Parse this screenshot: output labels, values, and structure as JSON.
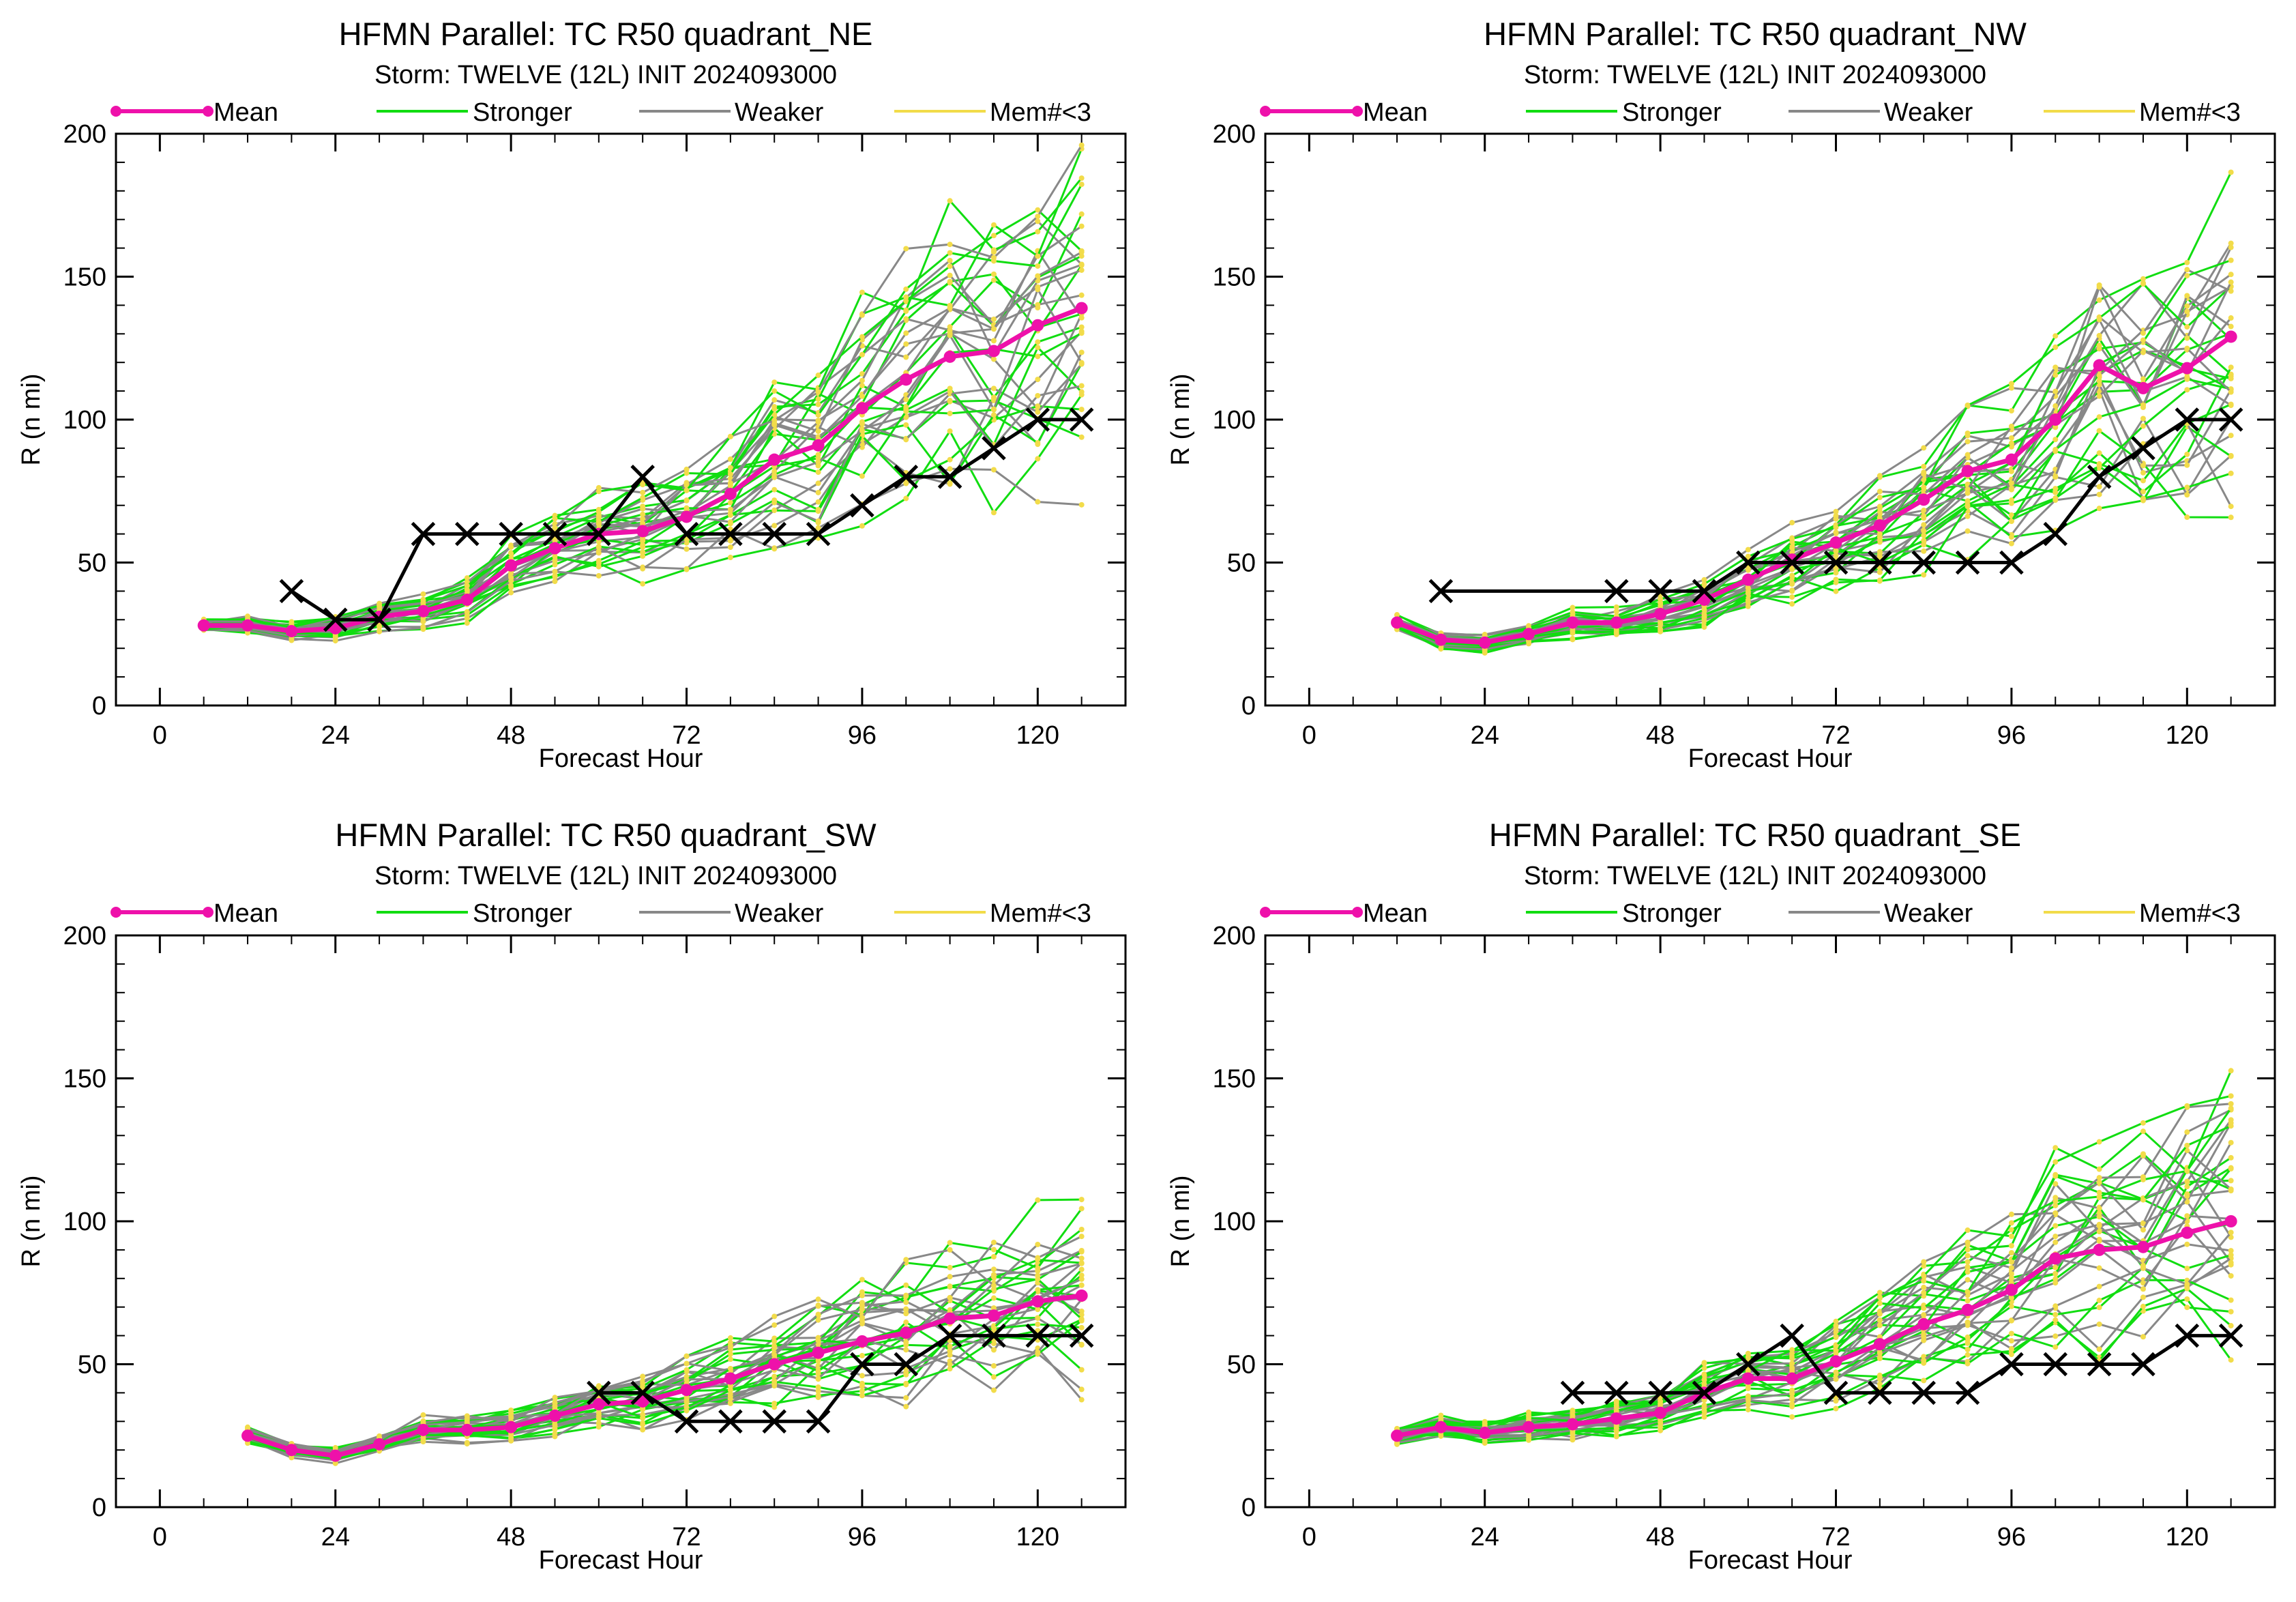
{
  "legend": {
    "mean": "Mean",
    "stronger": "Stronger",
    "weaker": "Weaker",
    "lowmem": "Mem#<3"
  },
  "colors": {
    "mean": "#ee11aa",
    "stronger": "#11dd11",
    "weaker": "#888888",
    "lowmem": "#f2dc4a",
    "best_track": "#000000"
  },
  "chart_data": [
    {
      "type": "line",
      "title": "HFMN Parallel: TC  R50 quadrant_NE",
      "subtitle": "Storm: TWELVE (12L) INIT 2024093000",
      "xlabel": "Forecast Hour",
      "ylabel": "R (n mi)",
      "xlim": [
        -6,
        132
      ],
      "ylim": [
        0,
        200
      ],
      "xticks": [
        0,
        24,
        48,
        72,
        96,
        120
      ],
      "yticks": [
        0,
        50,
        100,
        150,
        200
      ],
      "grid": false,
      "legend_position": "top",
      "series": [
        {
          "name": "Mean",
          "x": [
            6,
            12,
            18,
            24,
            30,
            36,
            42,
            48,
            54,
            60,
            66,
            72,
            78,
            84,
            90,
            96,
            102,
            108,
            114,
            120,
            126
          ],
          "y": [
            28,
            28,
            26,
            27,
            31,
            33,
            37,
            49,
            55,
            60,
            61,
            66,
            74,
            86,
            91,
            104,
            114,
            122,
            124,
            133,
            139
          ]
        },
        {
          "x": [
            18,
            24,
            30,
            36,
            42,
            48,
            54,
            60,
            66,
            72,
            78,
            84,
            90,
            96,
            102,
            108,
            114,
            120,
            126
          ],
          "y": [
            40,
            30,
            30,
            60,
            60,
            60,
            60,
            60,
            80,
            60,
            60,
            60,
            60,
            70,
            80,
            80,
            90,
            100,
            100
          ]
        }
      ]
    },
    {
      "type": "line",
      "title": "HFMN Parallel: TC  R50 quadrant_NW",
      "subtitle": "Storm: TWELVE (12L) INIT 2024093000",
      "xlabel": "Forecast Hour",
      "ylabel": "R (n mi)",
      "xlim": [
        -6,
        132
      ],
      "ylim": [
        0,
        200
      ],
      "xticks": [
        0,
        24,
        48,
        72,
        96,
        120
      ],
      "yticks": [
        0,
        50,
        100,
        150,
        200
      ],
      "grid": false,
      "legend_position": "top",
      "series": [
        {
          "name": "Mean",
          "x": [
            12,
            18,
            24,
            30,
            36,
            42,
            48,
            54,
            60,
            66,
            72,
            78,
            84,
            90,
            96,
            102,
            108,
            114,
            120,
            126
          ],
          "y": [
            29,
            23,
            22,
            25,
            29,
            29,
            32,
            37,
            44,
            51,
            57,
            63,
            72,
            82,
            86,
            100,
            119,
            111,
            118,
            129
          ]
        },
        {
          "x": [
            18,
            42,
            48,
            54,
            60,
            66,
            72,
            78,
            84,
            90,
            96,
            102,
            108,
            114,
            120,
            126
          ],
          "y": [
            40,
            40,
            40,
            40,
            50,
            50,
            50,
            50,
            50,
            50,
            50,
            60,
            80,
            90,
            100,
            100
          ]
        }
      ]
    },
    {
      "type": "line",
      "title": "HFMN Parallel: TC  R50 quadrant_SW",
      "subtitle": "Storm: TWELVE (12L) INIT 2024093000",
      "xlabel": "Forecast Hour",
      "ylabel": "R (n mi)",
      "xlim": [
        -6,
        132
      ],
      "ylim": [
        0,
        200
      ],
      "xticks": [
        0,
        24,
        48,
        72,
        96,
        120
      ],
      "yticks": [
        0,
        50,
        100,
        150,
        200
      ],
      "grid": false,
      "legend_position": "top",
      "series": [
        {
          "name": "Mean",
          "x": [
            12,
            18,
            24,
            30,
            36,
            42,
            48,
            54,
            60,
            66,
            72,
            78,
            84,
            90,
            96,
            102,
            108,
            114,
            120,
            126
          ],
          "y": [
            25,
            20,
            18,
            22,
            27,
            27,
            28,
            32,
            36,
            37,
            41,
            45,
            50,
            54,
            58,
            61,
            66,
            67,
            72,
            74
          ]
        },
        {
          "x": [
            60,
            66,
            72,
            78,
            84,
            90,
            96,
            102,
            108,
            114,
            120,
            126
          ],
          "y": [
            40,
            40,
            30,
            30,
            30,
            30,
            50,
            50,
            60,
            60,
            60,
            60
          ]
        }
      ]
    },
    {
      "type": "line",
      "title": "HFMN Parallel: TC  R50 quadrant_SE",
      "subtitle": "Storm: TWELVE (12L) INIT 2024093000",
      "xlabel": "Forecast Hour",
      "ylabel": "R (n mi)",
      "xlim": [
        -6,
        132
      ],
      "ylim": [
        0,
        200
      ],
      "xticks": [
        0,
        24,
        48,
        72,
        96,
        120
      ],
      "yticks": [
        0,
        50,
        100,
        150,
        200
      ],
      "grid": false,
      "legend_position": "top",
      "series": [
        {
          "name": "Mean",
          "x": [
            12,
            18,
            24,
            30,
            36,
            42,
            48,
            54,
            60,
            66,
            72,
            78,
            84,
            90,
            96,
            102,
            108,
            114,
            120,
            126
          ],
          "y": [
            25,
            28,
            26,
            28,
            29,
            31,
            33,
            40,
            45,
            45,
            51,
            57,
            64,
            69,
            76,
            87,
            90,
            91,
            96,
            100
          ]
        },
        {
          "x": [
            36,
            42,
            48,
            54,
            60,
            66,
            72,
            78,
            84,
            90,
            96,
            102,
            108,
            114,
            120,
            126
          ],
          "y": [
            40,
            40,
            40,
            40,
            50,
            60,
            40,
            40,
            40,
            40,
            50,
            50,
            50,
            50,
            60,
            60
          ]
        }
      ]
    }
  ]
}
